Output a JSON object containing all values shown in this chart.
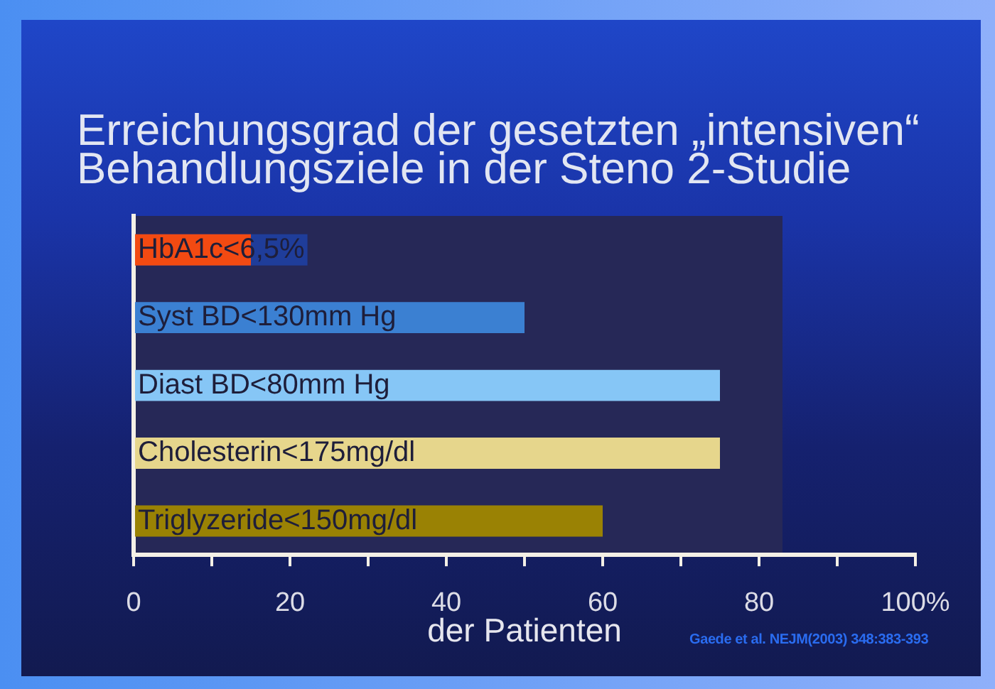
{
  "chart_data": {
    "type": "bar",
    "orientation": "horizontal",
    "title": "Erreichungsgrad der gesetzten „intensiven“ Behandlungsziele in der Steno 2-Studie",
    "categories": [
      "HbA1c<6,5%",
      "Syst BD<130mm Hg",
      "Diast BD<80mm Hg",
      "Cholesterin<175mg/dl",
      "Triglyzeride<150mg/dl"
    ],
    "values": [
      15,
      50,
      75,
      75,
      60
    ],
    "colors": [
      "#f24a12",
      "#3b80d2",
      "#86c6f6",
      "#e6d68c",
      "#9a8204"
    ],
    "xlim": [
      0,
      100
    ],
    "xticks": [
      0,
      {
        "value": 10,
        "label": null
      },
      20,
      {
        "value": 30,
        "label": null
      },
      40,
      {
        "value": 50,
        "label": null
      },
      60,
      {
        "value": 70,
        "label": null
      },
      80,
      {
        "value": 90,
        "label": null
      },
      {
        "value": 100,
        "label": "100%"
      }
    ],
    "bands": [
      {
        "axis": "x",
        "from": 0,
        "to": 83,
        "color": "#262857"
      }
    ],
    "xlabel": "der Patienten",
    "annotations": [
      "Gaede et al. NEJM(2003) 348:383-393"
    ]
  }
}
